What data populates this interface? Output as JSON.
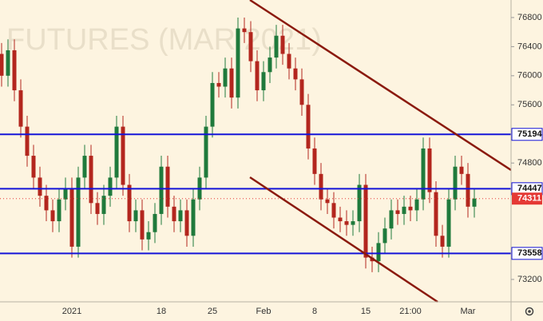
{
  "chart_data": {
    "type": "candlestick",
    "watermark": "FUTURES (MAR 2021)",
    "categories": [
      null,
      null,
      null,
      null,
      null,
      null,
      null,
      null,
      null,
      null,
      null,
      "2021",
      null,
      null,
      null,
      null,
      null,
      null,
      null,
      null,
      null,
      null,
      null,
      null,
      null,
      "18",
      null,
      null,
      null,
      null,
      null,
      null,
      null,
      "25",
      null,
      null,
      null,
      null,
      null,
      null,
      null,
      "Feb",
      null,
      null,
      null,
      null,
      null,
      null,
      null,
      "8",
      null,
      null,
      null,
      null,
      null,
      null,
      null,
      "15",
      null,
      null,
      null,
      null,
      null,
      null,
      "21:00",
      null,
      null,
      null,
      null,
      null,
      null,
      null,
      null,
      "Mar",
      null
    ],
    "open": [
      76300,
      76000,
      76350,
      75800,
      75300,
      74900,
      74600,
      74350,
      74150,
      74000,
      74300,
      74450,
      73650,
      74600,
      74900,
      74250,
      74100,
      74350,
      74600,
      75300,
      74500,
      74000,
      74150,
      73750,
      73850,
      74100,
      74750,
      74200,
      74000,
      74150,
      73800,
      74300,
      74600,
      75300,
      75900,
      75850,
      76100,
      75700,
      76650,
      76600,
      76200,
      75800,
      76050,
      76250,
      76550,
      76300,
      76100,
      75950,
      75600,
      75000,
      74650,
      74300,
      74250,
      74050,
      74000,
      73950,
      74000,
      74500,
      73500,
      73450,
      73700,
      73900,
      74150,
      74100,
      74200,
      74150,
      74300,
      75000,
      74400,
      73800,
      73650,
      74300,
      74750,
      74650,
      74200
    ],
    "high": [
      76450,
      76500,
      76500,
      75950,
      75450,
      75050,
      74750,
      74500,
      74300,
      74450,
      74600,
      74600,
      74750,
      75050,
      75050,
      74400,
      74500,
      74750,
      75450,
      75450,
      74650,
      74300,
      74300,
      74000,
      74250,
      74900,
      74900,
      74350,
      74300,
      74300,
      74450,
      74750,
      75450,
      76050,
      76050,
      76250,
      76250,
      76800,
      76800,
      76750,
      76350,
      76200,
      76400,
      76700,
      76700,
      76450,
      76250,
      76100,
      75750,
      75150,
      74800,
      74450,
      74400,
      74200,
      74150,
      74150,
      74650,
      74650,
      73650,
      73850,
      74050,
      74300,
      74300,
      74350,
      74350,
      74450,
      75150,
      75150,
      74550,
      73950,
      74450,
      74900,
      74900,
      74800,
      74450
    ],
    "low": [
      75850,
      75850,
      75650,
      75150,
      74750,
      74450,
      74200,
      74000,
      73850,
      73850,
      74150,
      73500,
      73500,
      74450,
      74100,
      73950,
      73950,
      74200,
      74450,
      74350,
      73850,
      73850,
      73600,
      73600,
      73700,
      73950,
      74050,
      73850,
      73850,
      73650,
      73650,
      74150,
      74450,
      75150,
      75700,
      75700,
      75550,
      75550,
      76450,
      76050,
      75650,
      75650,
      75900,
      76100,
      76150,
      75950,
      75800,
      75450,
      74850,
      74500,
      74150,
      74100,
      73900,
      73850,
      73800,
      73800,
      73850,
      73350,
      73300,
      73300,
      73550,
      73750,
      73950,
      73950,
      74000,
      74000,
      74150,
      74250,
      73650,
      73500,
      73500,
      74150,
      74500,
      74050,
      74050
    ],
    "close": [
      76000,
      76350,
      75800,
      75300,
      74900,
      74600,
      74350,
      74150,
      74000,
      74300,
      74450,
      73650,
      74600,
      74900,
      74250,
      74100,
      74350,
      74600,
      75300,
      74500,
      74000,
      74150,
      73750,
      73850,
      74100,
      74750,
      74200,
      74000,
      74150,
      73800,
      74300,
      74600,
      75300,
      75900,
      75850,
      76100,
      75700,
      76650,
      76600,
      76200,
      75800,
      76050,
      76250,
      76550,
      76300,
      76100,
      75950,
      75600,
      75000,
      74650,
      74300,
      74250,
      74050,
      74000,
      73950,
      74000,
      74500,
      73500,
      73450,
      73700,
      73900,
      74150,
      74100,
      74200,
      74150,
      74300,
      75000,
      74400,
      73800,
      73650,
      74300,
      74750,
      74650,
      74200,
      74311
    ],
    "up_color": "#1f7a3c",
    "down_color": "#b3261e",
    "ylim": [
      72892,
      77041
    ],
    "yticks": [
      76800,
      76400,
      76000,
      75600,
      74800,
      73200
    ],
    "levels": [
      {
        "value": 75194,
        "color": "#1414d8"
      },
      {
        "value": 74447,
        "color": "#1414d8"
      },
      {
        "value": 73558,
        "color": "#1414d8"
      }
    ],
    "last": {
      "value": 74311,
      "color": "#e53935"
    }
  }
}
